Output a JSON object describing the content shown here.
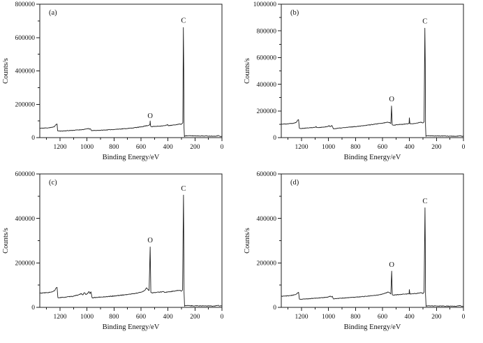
{
  "figure": {
    "background": "#ffffff",
    "line_color": "#1c1c1c",
    "axis_color": "#1c1c1c",
    "text_color": "#111111"
  },
  "chart_data": [
    {
      "type": "line",
      "panel_label": "(a)",
      "xlabel": "Binding Energy/eV",
      "ylabel": "Counts/s",
      "xlim": [
        1350,
        0
      ],
      "ylim": [
        0,
        800000
      ],
      "x_major_ticks": [
        1200,
        1000,
        800,
        600,
        400,
        200,
        0
      ],
      "x_minor_step": 100,
      "y_major_ticks": [
        0,
        200000,
        400000,
        600000,
        800000
      ],
      "y_minor_step": 100000,
      "grid": false,
      "legend": "none",
      "annotations": [
        {
          "label": "C",
          "x": 285,
          "y": 690000
        },
        {
          "label": "O",
          "x": 532,
          "y": 118000
        }
      ],
      "noise": 1700,
      "seed": 11,
      "series": [
        {
          "name": "survey spectrum (a)",
          "points": [
            [
              1350,
              56000
            ],
            [
              1300,
              58000
            ],
            [
              1260,
              61000
            ],
            [
              1240,
              67000
            ],
            [
              1228,
              80000
            ],
            [
              1222,
              82000
            ],
            [
              1218,
              41000
            ],
            [
              1200,
              39000
            ],
            [
              1100,
              44000
            ],
            [
              1020,
              49000
            ],
            [
              1005,
              52000
            ],
            [
              990,
              55000
            ],
            [
              983,
              50000
            ],
            [
              975,
              53000
            ],
            [
              966,
              42000
            ],
            [
              950,
              42500
            ],
            [
              900,
              44000
            ],
            [
              800,
              49000
            ],
            [
              700,
              55000
            ],
            [
              650,
              59000
            ],
            [
              600,
              64000
            ],
            [
              570,
              70000
            ],
            [
              545,
              73000
            ],
            [
              538,
              76000
            ],
            [
              534,
              78000
            ],
            [
              532,
              100000
            ],
            [
              529,
              70000
            ],
            [
              524,
              66000
            ],
            [
              500,
              67000
            ],
            [
              480,
              68000
            ],
            [
              450,
              70000
            ],
            [
              420,
              72000
            ],
            [
              401,
              78000
            ],
            [
              398,
              72000
            ],
            [
              380,
              73000
            ],
            [
              350,
              76000
            ],
            [
              330,
              79000
            ],
            [
              315,
              82000
            ],
            [
              305,
              79000
            ],
            [
              296,
              84000
            ],
            [
              290,
              90000
            ],
            [
              286,
              660000
            ],
            [
              283,
              400000
            ],
            [
              281,
              60000
            ],
            [
              278,
              6000
            ],
            [
              274,
              11000
            ],
            [
              250,
              11000
            ],
            [
              200,
              10500
            ],
            [
              150,
              10000
            ],
            [
              100,
              9500
            ],
            [
              50,
              9000
            ],
            [
              25,
              12000
            ],
            [
              15,
              8500
            ],
            [
              0,
              8000
            ]
          ]
        }
      ]
    },
    {
      "type": "line",
      "panel_label": "(b)",
      "xlabel": "Binding Energy/eV",
      "ylabel": "Counts/s",
      "xlim": [
        1350,
        0
      ],
      "ylim": [
        0,
        1000000
      ],
      "x_major_ticks": [
        1200,
        1000,
        800,
        600,
        400,
        200,
        0
      ],
      "x_minor_step": 100,
      "y_major_ticks": [
        0,
        200000,
        400000,
        600000,
        800000,
        1000000
      ],
      "y_minor_step": 100000,
      "grid": false,
      "legend": "none",
      "annotations": [
        {
          "label": "C",
          "x": 286,
          "y": 855000
        },
        {
          "label": "O",
          "x": 532,
          "y": 272000
        }
      ],
      "noise": 2100,
      "seed": 22,
      "series": [
        {
          "name": "survey spectrum (b)",
          "points": [
            [
              1350,
              101000
            ],
            [
              1300,
              104000
            ],
            [
              1260,
              108000
            ],
            [
              1240,
              114000
            ],
            [
              1228,
              132000
            ],
            [
              1222,
              135000
            ],
            [
              1216,
              70000
            ],
            [
              1200,
              69000
            ],
            [
              1100,
              77000
            ],
            [
              1092,
              84000
            ],
            [
              1086,
              75000
            ],
            [
              1040,
              78000
            ],
            [
              1010,
              82000
            ],
            [
              995,
              90000
            ],
            [
              987,
              82000
            ],
            [
              975,
              91000
            ],
            [
              964,
              66000
            ],
            [
              950,
              68000
            ],
            [
              900,
              73000
            ],
            [
              800,
              83000
            ],
            [
              700,
              95000
            ],
            [
              600,
              108000
            ],
            [
              560,
              116000
            ],
            [
              545,
              112000
            ],
            [
              538,
              106000
            ],
            [
              533,
              237000
            ],
            [
              528,
              96000
            ],
            [
              520,
              93000
            ],
            [
              480,
              98000
            ],
            [
              450,
              100000
            ],
            [
              420,
              103000
            ],
            [
              403,
              105000
            ],
            [
              401,
              148000
            ],
            [
              397,
              105000
            ],
            [
              380,
              104000
            ],
            [
              350,
              108000
            ],
            [
              325,
              113000
            ],
            [
              310,
              115000
            ],
            [
              300,
              110000
            ],
            [
              292,
              116000
            ],
            [
              286,
              820000
            ],
            [
              283,
              550000
            ],
            [
              281,
              90000
            ],
            [
              278,
              9000
            ],
            [
              274,
              14000
            ],
            [
              250,
              13000
            ],
            [
              200,
              12500
            ],
            [
              150,
              12000
            ],
            [
              100,
              11000
            ],
            [
              50,
              10500
            ],
            [
              25,
              14000
            ],
            [
              15,
              10000
            ],
            [
              0,
              9500
            ]
          ]
        }
      ]
    },
    {
      "type": "line",
      "panel_label": "(c)",
      "xlabel": "Binding Energy/eV",
      "ylabel": "Counts/s",
      "xlim": [
        1350,
        0
      ],
      "ylim": [
        0,
        600000
      ],
      "x_major_ticks": [
        1200,
        1000,
        800,
        600,
        400,
        200,
        0
      ],
      "x_minor_step": 100,
      "y_major_ticks": [
        0,
        200000,
        400000,
        600000
      ],
      "y_minor_step": 100000,
      "grid": false,
      "legend": "none",
      "annotations": [
        {
          "label": "C",
          "x": 285,
          "y": 525000
        },
        {
          "label": "O",
          "x": 532,
          "y": 292000
        }
      ],
      "noise": 1500,
      "seed": 33,
      "series": [
        {
          "name": "survey spectrum (c)",
          "points": [
            [
              1350,
              64000
            ],
            [
              1300,
              66000
            ],
            [
              1260,
              69000
            ],
            [
              1240,
              75000
            ],
            [
              1228,
              88000
            ],
            [
              1222,
              90000
            ],
            [
              1216,
              44000
            ],
            [
              1200,
              43500
            ],
            [
              1100,
              50000
            ],
            [
              1060,
              57000
            ],
            [
              1042,
              62000
            ],
            [
              1032,
              56000
            ],
            [
              1020,
              66000
            ],
            [
              1008,
              58000
            ],
            [
              998,
              61000
            ],
            [
              985,
              71000
            ],
            [
              978,
              62000
            ],
            [
              971,
              70000
            ],
            [
              962,
              43000
            ],
            [
              950,
              44000
            ],
            [
              900,
              46000
            ],
            [
              800,
              51000
            ],
            [
              700,
              58000
            ],
            [
              640,
              63000
            ],
            [
              600,
              68000
            ],
            [
              575,
              75000
            ],
            [
              558,
              88000
            ],
            [
              548,
              80000
            ],
            [
              540,
              76000
            ],
            [
              532,
              272000
            ],
            [
              527,
              68000
            ],
            [
              520,
              65000
            ],
            [
              490,
              67000
            ],
            [
              460,
              69000
            ],
            [
              432,
              71000
            ],
            [
              425,
              67000
            ],
            [
              400,
              69000
            ],
            [
              380,
              71000
            ],
            [
              350,
              73000
            ],
            [
              325,
              76000
            ],
            [
              310,
              77000
            ],
            [
              300,
              73000
            ],
            [
              292,
              79000
            ],
            [
              285,
              505000
            ],
            [
              283,
              330000
            ],
            [
              281,
              70000
            ],
            [
              277,
              5000
            ],
            [
              273,
              8000
            ],
            [
              250,
              7500
            ],
            [
              200,
              7000
            ],
            [
              150,
              6800
            ],
            [
              100,
              6300
            ],
            [
              50,
              6000
            ],
            [
              30,
              9000
            ],
            [
              15,
              6000
            ],
            [
              0,
              5500
            ]
          ]
        }
      ]
    },
    {
      "type": "line",
      "panel_label": "(d)",
      "xlabel": "Binding Energy/eV",
      "ylabel": "Counts/s",
      "xlim": [
        1350,
        0
      ],
      "ylim": [
        0,
        600000
      ],
      "x_major_ticks": [
        1200,
        1000,
        800,
        600,
        400,
        200,
        0
      ],
      "x_minor_step": 100,
      "y_major_ticks": [
        0,
        200000,
        400000,
        600000
      ],
      "y_minor_step": 100000,
      "grid": false,
      "legend": "none",
      "annotations": [
        {
          "label": "C",
          "x": 285,
          "y": 468000
        },
        {
          "label": "O",
          "x": 532,
          "y": 182000
        }
      ],
      "noise": 1300,
      "seed": 44,
      "series": [
        {
          "name": "survey spectrum (d)",
          "points": [
            [
              1350,
              50000
            ],
            [
              1300,
              52000
            ],
            [
              1260,
              55000
            ],
            [
              1240,
              59000
            ],
            [
              1228,
              66000
            ],
            [
              1222,
              68000
            ],
            [
              1216,
              37000
            ],
            [
              1200,
              36500
            ],
            [
              1100,
              41000
            ],
            [
              1020,
              45000
            ],
            [
              1000,
              47000
            ],
            [
              988,
              51000
            ],
            [
              980,
              47000
            ],
            [
              972,
              50000
            ],
            [
              963,
              38000
            ],
            [
              950,
              39000
            ],
            [
              900,
              41500
            ],
            [
              800,
              46000
            ],
            [
              700,
              51000
            ],
            [
              640,
              55000
            ],
            [
              600,
              60000
            ],
            [
              575,
              65000
            ],
            [
              558,
              69000
            ],
            [
              545,
              64000
            ],
            [
              538,
              60000
            ],
            [
              532,
              163000
            ],
            [
              527,
              56000
            ],
            [
              520,
              55000
            ],
            [
              490,
              57000
            ],
            [
              460,
              58000
            ],
            [
              430,
              60000
            ],
            [
              403,
              61000
            ],
            [
              401,
              80000
            ],
            [
              397,
              60000
            ],
            [
              380,
              61000
            ],
            [
              350,
              62500
            ],
            [
              325,
              65000
            ],
            [
              310,
              66000
            ],
            [
              300,
              62000
            ],
            [
              292,
              67000
            ],
            [
              285,
              448000
            ],
            [
              283,
              300000
            ],
            [
              281,
              58000
            ],
            [
              277,
              4500
            ],
            [
              273,
              7000
            ],
            [
              250,
              6500
            ],
            [
              200,
              6000
            ],
            [
              150,
              5800
            ],
            [
              100,
              5400
            ],
            [
              50,
              5200
            ],
            [
              25,
              8000
            ],
            [
              15,
              5000
            ],
            [
              0,
              4500
            ]
          ]
        }
      ]
    }
  ]
}
